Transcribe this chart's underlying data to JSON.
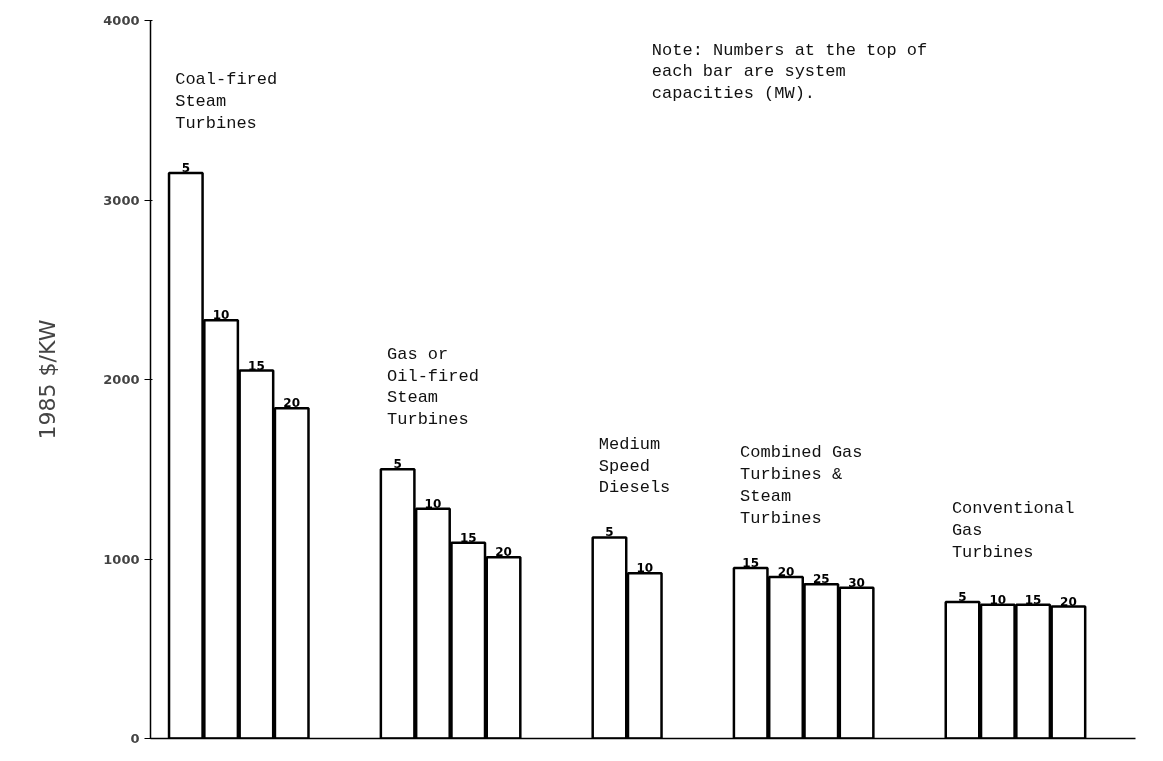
{
  "chart_data": {
    "type": "bar",
    "ylabel": "1985 $/KW",
    "ylim": [
      0,
      4000
    ],
    "yticks": [
      0,
      1000,
      2000,
      3000,
      4000
    ],
    "grid": false,
    "categories": [
      "5",
      "10",
      "15",
      "20",
      null,
      null,
      "5",
      "10",
      "15",
      "20",
      null,
      null,
      "5",
      "10",
      null,
      null,
      "15",
      "20",
      "25",
      "30",
      null,
      null,
      "5",
      "10",
      "15",
      "20"
    ],
    "series": [
      {
        "name": "Coal-fired\nSteam\nTurbines",
        "color": "#ffffff",
        "values": [
          3150,
          2330,
          2050,
          1840,
          null,
          null,
          null,
          null,
          null,
          null,
          null,
          null,
          null,
          null,
          null,
          null,
          null,
          null,
          null,
          null,
          null,
          null,
          null,
          null,
          null,
          null
        ]
      },
      {
        "name": "Gas  or\nOil-fired\nSteam\nTurbines",
        "color": "#ffffff",
        "values": [
          null,
          null,
          null,
          null,
          null,
          null,
          1500,
          1280,
          1090,
          1010,
          null,
          null,
          null,
          null,
          null,
          null,
          null,
          null,
          null,
          null,
          null,
          null,
          null,
          null,
          null,
          null
        ]
      },
      {
        "name": "Medium\nSpeed\nDiesels",
        "color": "#ffffff",
        "values": [
          null,
          null,
          null,
          null,
          null,
          null,
          null,
          null,
          null,
          null,
          null,
          null,
          1120,
          920,
          null,
          null,
          null,
          null,
          null,
          null,
          null,
          null,
          null,
          null,
          null,
          null
        ]
      },
      {
        "name": "Combined Gas\nTurbines &\nSteam\nTurbines",
        "color": "#ffffff",
        "values": [
          null,
          null,
          null,
          null,
          null,
          null,
          null,
          null,
          null,
          null,
          null,
          null,
          null,
          null,
          null,
          null,
          950,
          900,
          860,
          840,
          null,
          null,
          null,
          null,
          null,
          null
        ]
      },
      {
        "name": "Conventional\nGas\nTurbines",
        "color": "#ffffff",
        "values": [
          null,
          null,
          null,
          null,
          null,
          null,
          null,
          null,
          null,
          null,
          null,
          null,
          null,
          null,
          null,
          null,
          null,
          null,
          null,
          null,
          null,
          null,
          760,
          745,
          745,
          735
        ]
      }
    ],
    "annotations": [
      "Note:  Numbers at the top of\n       each bar are system\n       capacities (MW)."
    ]
  }
}
